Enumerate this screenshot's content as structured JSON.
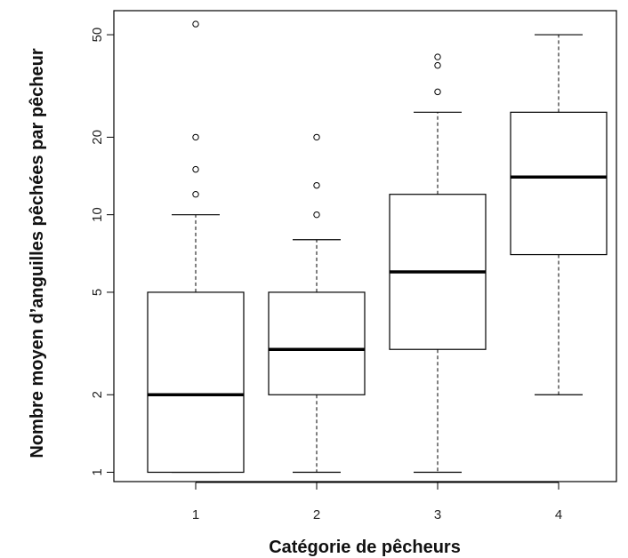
{
  "chart_data": {
    "type": "box",
    "title": "",
    "xlabel": "Catégorie de pêcheurs",
    "ylabel": "Nombre moyen d’anguilles pêchées par pêcheur",
    "y_scale": "log",
    "ylim": [
      0.92,
      62
    ],
    "y_ticks": [
      1,
      2,
      5,
      10,
      20,
      50
    ],
    "y_tick_labels": [
      "1",
      "2",
      "5",
      "10",
      "20",
      "50"
    ],
    "categories": [
      "1",
      "2",
      "3",
      "4"
    ],
    "boxes": [
      {
        "category": "1",
        "whisker_low": 1,
        "q1": 1,
        "median": 2,
        "q3": 5,
        "whisker_high": 10,
        "outliers": [
          12,
          15,
          20,
          55
        ]
      },
      {
        "category": "2",
        "whisker_low": 1,
        "q1": 2,
        "median": 3,
        "q3": 5,
        "whisker_high": 8,
        "outliers": [
          10,
          13,
          20
        ]
      },
      {
        "category": "3",
        "whisker_low": 1,
        "q1": 3,
        "median": 6,
        "q3": 12,
        "whisker_high": 25,
        "outliers": [
          30,
          38,
          41
        ]
      },
      {
        "category": "4",
        "whisker_low": 2,
        "q1": 7,
        "median": 14,
        "q3": 25,
        "whisker_high": 50,
        "outliers": []
      }
    ],
    "grid": false,
    "legend": "none"
  }
}
